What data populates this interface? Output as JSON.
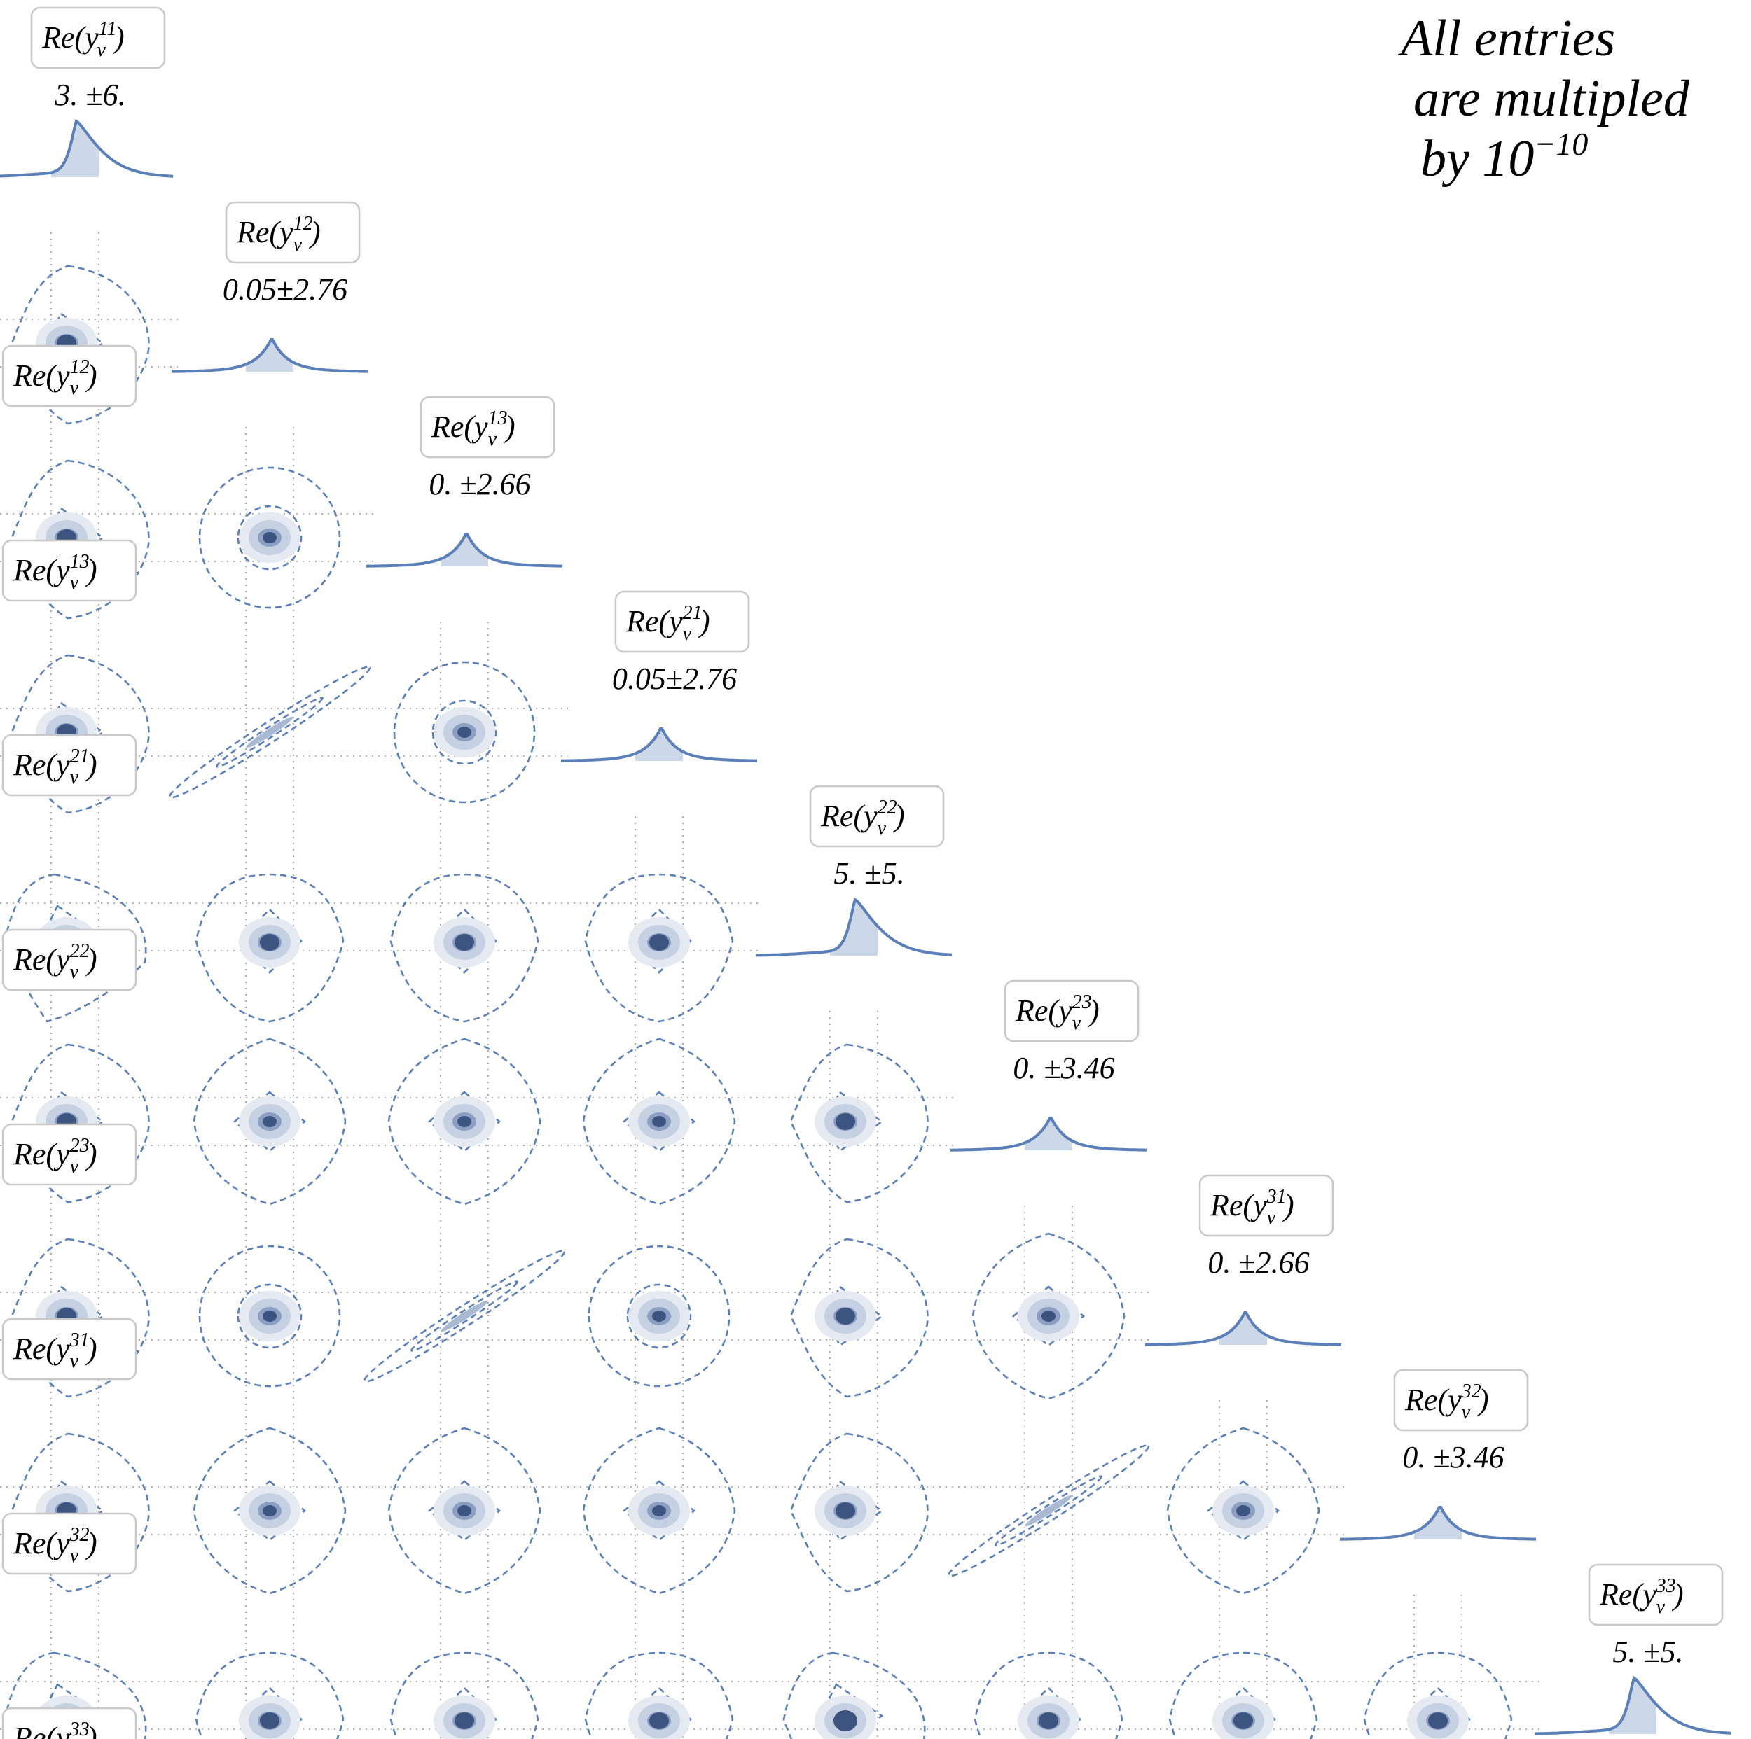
{
  "note": {
    "line1": "All entries",
    "line2": "are multipled",
    "line3_prefix": "by 10",
    "line3_exponent": "−10"
  },
  "colors": {
    "line": "#5b7fb8",
    "fill": "#ccd7e8",
    "core": "#3e5480",
    "grid": "#9a9a9a",
    "box": "#c8c8c8"
  },
  "chart_data": {
    "type": "corner",
    "parameters": [
      {
        "id": "11",
        "base": "Re",
        "symbol": "y",
        "subscript": "ν",
        "superscript": "11",
        "value": "3. ±6.",
        "mean": 3,
        "sigma": 6,
        "skewed": true
      },
      {
        "id": "12",
        "base": "Re",
        "symbol": "y",
        "subscript": "ν",
        "superscript": "12",
        "value": "0.05±2.76",
        "mean": 0.05,
        "sigma": 2.76,
        "skewed": false
      },
      {
        "id": "13",
        "base": "Re",
        "symbol": "y",
        "subscript": "ν",
        "superscript": "13",
        "value": "0. ±2.66",
        "mean": 0,
        "sigma": 2.66,
        "skewed": false
      },
      {
        "id": "21",
        "base": "Re",
        "symbol": "y",
        "subscript": "ν",
        "superscript": "21",
        "value": "0.05±2.76",
        "mean": 0.05,
        "sigma": 2.76,
        "skewed": false
      },
      {
        "id": "22",
        "base": "Re",
        "symbol": "y",
        "subscript": "ν",
        "superscript": "22",
        "value": "5. ±5.",
        "mean": 5,
        "sigma": 5,
        "skewed": true
      },
      {
        "id": "23",
        "base": "Re",
        "symbol": "y",
        "subscript": "ν",
        "superscript": "23",
        "value": "0. ±3.46",
        "mean": 0,
        "sigma": 3.46,
        "skewed": false
      },
      {
        "id": "31",
        "base": "Re",
        "symbol": "y",
        "subscript": "ν",
        "superscript": "31",
        "value": "0. ±2.66",
        "mean": 0,
        "sigma": 2.66,
        "skewed": false
      },
      {
        "id": "32",
        "base": "Re",
        "symbol": "y",
        "subscript": "ν",
        "superscript": "32",
        "value": "0. ±3.46",
        "mean": 0,
        "sigma": 3.46,
        "skewed": false
      },
      {
        "id": "33",
        "base": "Re",
        "symbol": "y",
        "subscript": "ν",
        "superscript": "33",
        "value": "5. ±5.",
        "mean": 5,
        "sigma": 5,
        "skewed": true
      }
    ],
    "correlated_pairs": [
      [
        "12",
        "21"
      ],
      [
        "13",
        "31"
      ],
      [
        "23",
        "32"
      ]
    ],
    "grid": true
  }
}
